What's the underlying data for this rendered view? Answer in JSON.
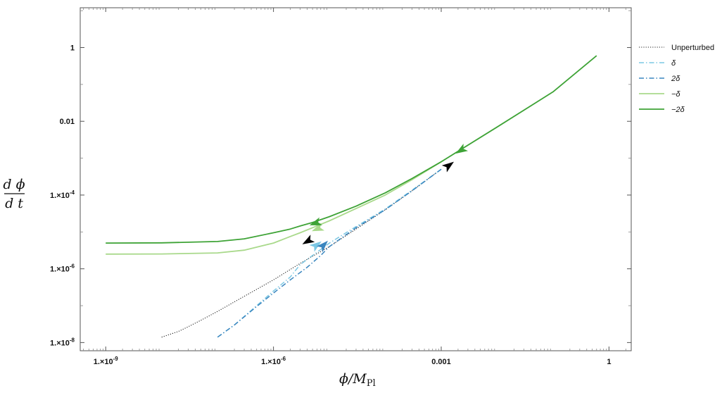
{
  "chart_data": {
    "type": "line",
    "title": "",
    "x_scale": "log",
    "y_scale": "log",
    "xlim": [
      3.5e-10,
      2.5
    ],
    "ylim": [
      6e-09,
      12
    ],
    "xticks": [
      {
        "value": 1e-09,
        "label": "1.×10^-9"
      },
      {
        "value": 1e-06,
        "label": "1.×10^-6"
      },
      {
        "value": 0.001,
        "label": "0.001"
      },
      {
        "value": 1,
        "label": "1"
      }
    ],
    "yticks": [
      {
        "value": 1,
        "label": "1"
      },
      {
        "value": 0.01,
        "label": "0.01"
      },
      {
        "value": 0.0001,
        "label": "1.×10^-4"
      },
      {
        "value": 1e-06,
        "label": "1.×10^-6"
      },
      {
        "value": 1e-08,
        "label": "1.×10^-8"
      }
    ],
    "xlabel": {
      "phi": "ϕ",
      "slash": "/",
      "M": "M",
      "sub": "Pl"
    },
    "ylabel": {
      "numerator": "d ϕ",
      "denominator": "d t"
    },
    "legend_position": "right",
    "series": [
      {
        "name": "Unperturbed",
        "color": "#222222",
        "style": "dotted",
        "x": [
          1e-08,
          2e-08,
          3e-08,
          5e-08,
          1e-07,
          3e-07,
          1e-06,
          3e-06,
          1e-05,
          3e-05,
          0.0001,
          0.0003,
          0.001
        ],
        "y": [
          1.4e-08,
          2e-08,
          2.7e-08,
          4e-08,
          7e-08,
          1.8e-07,
          5e-07,
          1.4e-06,
          4e-06,
          1.2e-05,
          4e-05,
          0.00013,
          0.0005
        ]
      },
      {
        "name": "δ",
        "color": "#7cc8e4",
        "style": "dashdot",
        "x": [
          1e-07,
          2e-07,
          5e-07,
          1e-06,
          2e-06,
          3e-06,
          5e-06,
          1e-05,
          3e-05,
          0.0001,
          0.0003,
          0.001
        ],
        "y": [
          1.4e-08,
          3e-08,
          1e-07,
          2.5e-07,
          6e-07,
          1.3e-06,
          2.3e-06,
          5e-06,
          1.4e-05,
          4.2e-05,
          0.000135,
          0.0005
        ]
      },
      {
        "name": "2δ",
        "color": "#3a86bf",
        "style": "dashdot",
        "x": [
          1e-07,
          2e-07,
          5e-07,
          1e-06,
          2e-06,
          4e-06,
          7e-06,
          1e-05,
          3e-05,
          0.0001,
          0.0003,
          0.001
        ],
        "y": [
          1.4e-08,
          3e-08,
          9.5e-08,
          2.2e-07,
          5e-07,
          1.1e-06,
          2.3e-06,
          4e-06,
          1.3e-05,
          4e-05,
          0.00013,
          0.0005
        ]
      },
      {
        "name": "−δ",
        "color": "#a9d98b",
        "style": "solid",
        "x": [
          1e-09,
          1e-08,
          1e-07,
          3e-07,
          1e-06,
          2e-06,
          3e-06,
          5e-06,
          1e-05,
          3e-05,
          0.0001,
          0.0003,
          0.001
        ],
        "y": [
          2.5e-06,
          2.52e-06,
          2.7e-06,
          3.2e-06,
          5e-06,
          7.5e-06,
          9.5e-06,
          1.3e-05,
          2e-05,
          4.3e-05,
          0.0001,
          0.00026,
          0.0008
        ]
      },
      {
        "name": "−2δ",
        "color": "#3ea336",
        "style": "solid",
        "x": [
          1e-09,
          1e-08,
          1e-07,
          3e-07,
          1e-06,
          2e-06,
          3e-06,
          5e-06,
          1e-05,
          3e-05,
          0.0001,
          0.0003,
          0.001,
          0.01,
          0.1,
          0.6
        ],
        "y": [
          5e-06,
          5.05e-06,
          5.5e-06,
          6.5e-06,
          9.5e-06,
          1.2e-05,
          1.45e-05,
          1.8e-05,
          2.6e-05,
          5e-05,
          0.000115,
          0.00028,
          0.0008,
          0.007,
          0.063,
          0.6
        ]
      }
    ],
    "arrows": [
      {
        "series": "Unperturbed",
        "x": 4e-06,
        "y": 5.5e-06,
        "direction": "backward"
      },
      {
        "series": "Unperturbed",
        "x": 0.0014,
        "y": 0.00065,
        "direction": "forward"
      },
      {
        "series": "δ",
        "x": 6e-06,
        "y": 4.5e-06,
        "direction": "forward"
      },
      {
        "series": "2δ",
        "x": 8e-06,
        "y": 4.5e-06,
        "direction": "forward"
      },
      {
        "series": "−δ",
        "x": 6e-06,
        "y": 1.2e-05,
        "direction": "backward"
      },
      {
        "series": "−2δ",
        "x": 5.5e-06,
        "y": 1.7e-05,
        "direction": "backward"
      },
      {
        "series": "−2δ",
        "x": 0.0022,
        "y": 0.0016,
        "direction": "backward"
      }
    ]
  }
}
